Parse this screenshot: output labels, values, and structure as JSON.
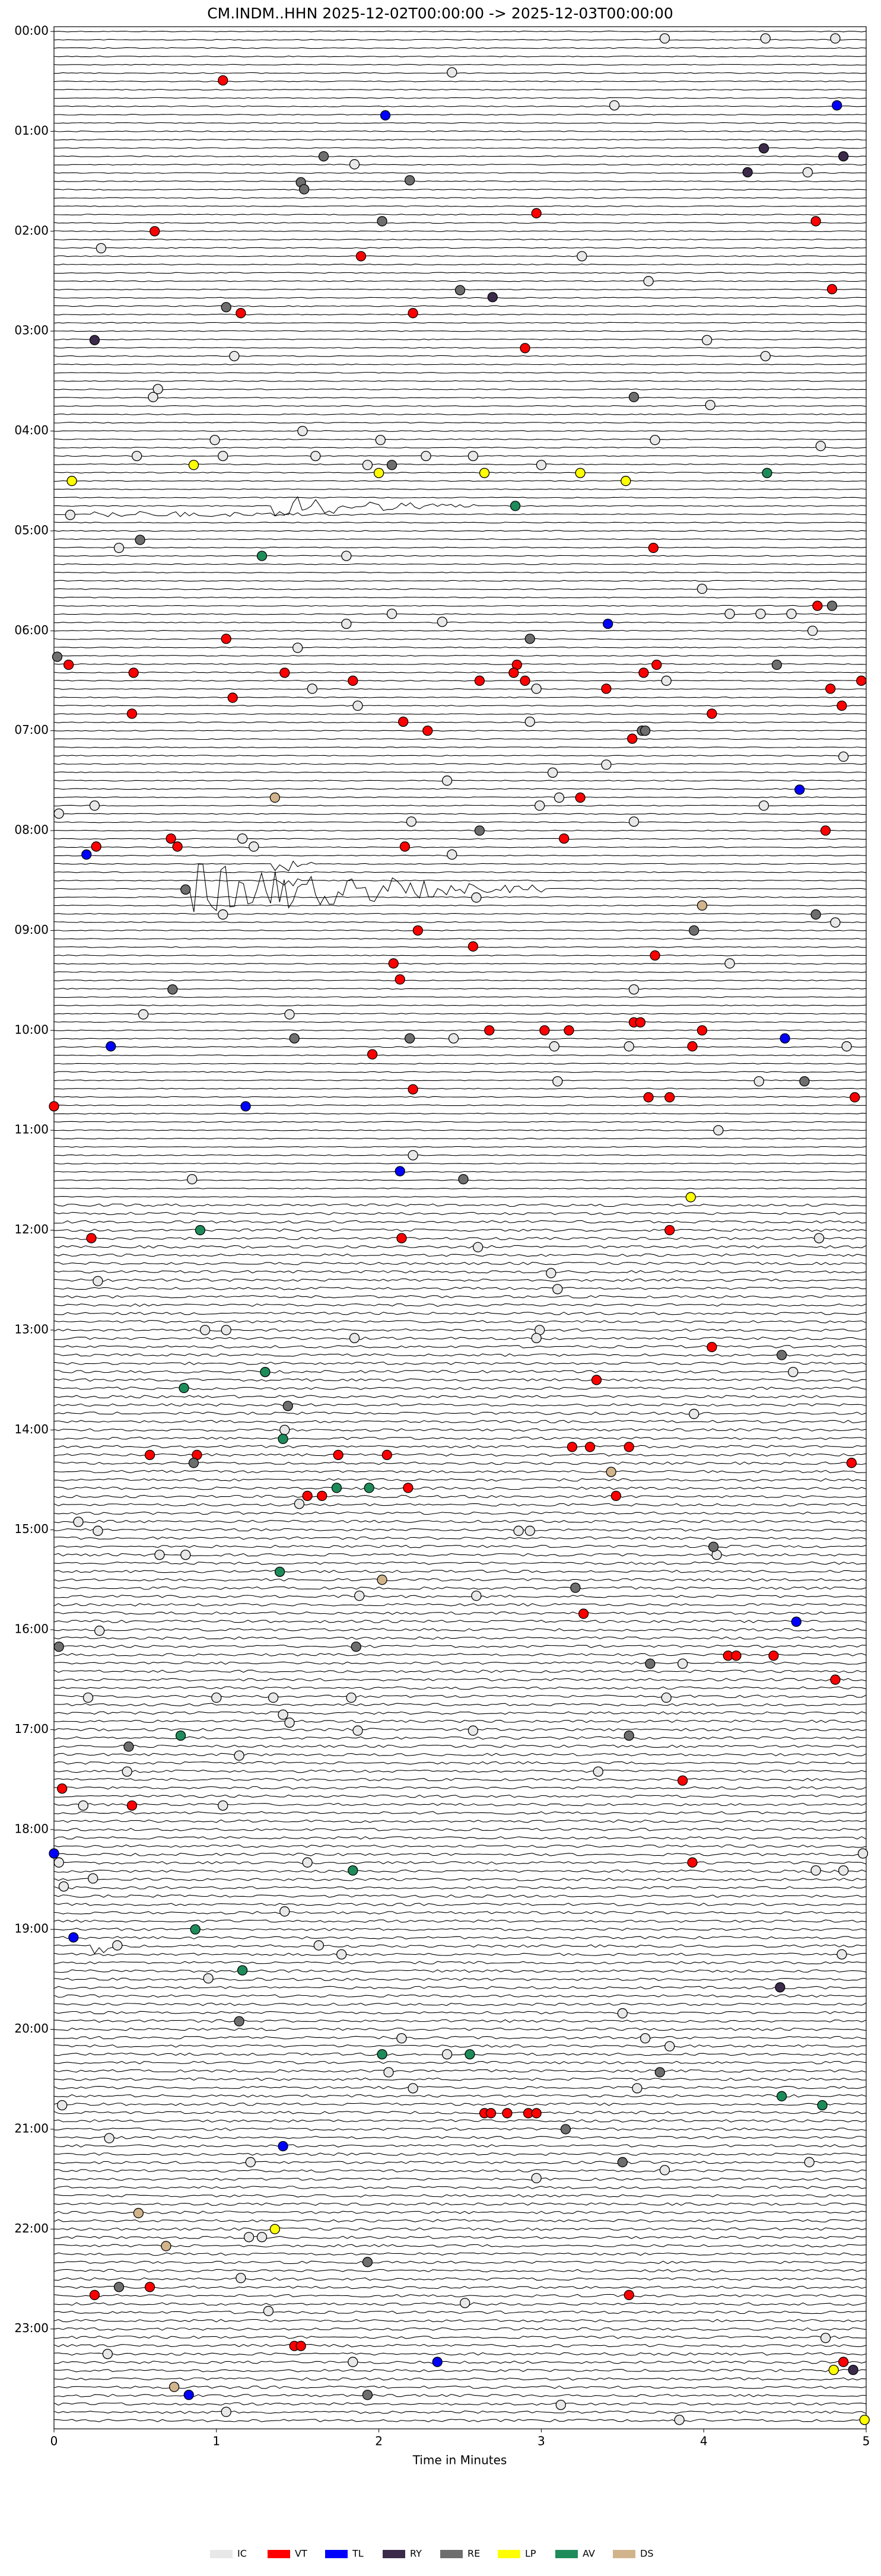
{
  "chart_data": {
    "type": "helicorder",
    "title": "CM.INDM..HHN  2025-12-02T00:00:00 -> 2025-12-03T00:00:00",
    "x_label": "Time in Minutes",
    "xlim": [
      0,
      5
    ],
    "xticks": [
      0,
      1,
      2,
      3,
      4,
      5
    ],
    "ylim": [
      0,
      24
    ],
    "y_inverted": true,
    "yticks": [
      {
        "value": 0,
        "label": "00:00"
      },
      {
        "value": 1,
        "label": "01:00"
      },
      {
        "value": 2,
        "label": "02:00"
      },
      {
        "value": 3,
        "label": "03:00"
      },
      {
        "value": 4,
        "label": "04:00"
      },
      {
        "value": 5,
        "label": "05:00"
      },
      {
        "value": 6,
        "label": "06:00"
      },
      {
        "value": 7,
        "label": "07:00"
      },
      {
        "value": 8,
        "label": "08:00"
      },
      {
        "value": 9,
        "label": "09:00"
      },
      {
        "value": 10,
        "label": "10:00"
      },
      {
        "value": 11,
        "label": "11:00"
      },
      {
        "value": 12,
        "label": "12:00"
      },
      {
        "value": 13,
        "label": "13:00"
      },
      {
        "value": 14,
        "label": "14:00"
      },
      {
        "value": 15,
        "label": "15:00"
      },
      {
        "value": 16,
        "label": "16:00"
      },
      {
        "value": 17,
        "label": "17:00"
      },
      {
        "value": 18,
        "label": "18:00"
      },
      {
        "value": 19,
        "label": "19:00"
      },
      {
        "value": 20,
        "label": "20:00"
      },
      {
        "value": 21,
        "label": "21:00"
      },
      {
        "value": 22,
        "label": "22:00"
      },
      {
        "value": 23,
        "label": "23:00"
      }
    ],
    "legend": "lower center",
    "series": [
      {
        "name": "IC",
        "color": "#e8e8e8",
        "x": [
          3.76,
          4.38,
          4.81,
          2.45,
          3.45,
          1.85,
          4.64,
          0.29,
          3.25,
          3.66,
          4.02,
          1.11,
          4.38,
          0.64,
          0.61,
          4.04,
          1.53,
          0.99,
          2.01,
          3.7,
          4.72,
          0.51,
          1.04,
          1.61,
          2.29,
          2.58,
          1.93,
          3.0,
          0.1,
          0.4,
          1.8,
          3.99,
          1.8,
          2.08,
          2.39,
          4.16,
          4.35,
          4.54,
          4.67,
          1.5,
          3.77,
          1.59,
          1.87,
          2.97,
          2.93,
          4.86,
          3.4,
          3.07,
          2.42,
          3.11,
          2.99,
          4.37,
          0.03,
          0.25,
          2.2,
          3.57,
          1.16,
          1.23,
          2.45,
          2.6,
          1.04,
          4.81,
          4.16,
          3.57,
          0.55,
          1.45,
          2.46,
          3.08,
          3.54,
          4.88,
          3.1,
          4.34,
          4.09,
          2.21,
          0.85,
          4.71,
          2.61,
          3.06,
          0.27,
          3.1,
          0.93,
          1.06,
          2.99,
          2.97,
          1.85,
          4.55,
          3.94,
          1.42,
          1.51,
          0.15,
          0.27,
          2.86,
          2.93,
          4.08,
          0.65,
          0.81,
          1.88,
          2.6,
          0.28,
          3.87,
          0.21,
          1.0,
          1.35,
          1.83,
          3.77,
          1.41,
          1.45,
          1.87,
          2.58,
          1.14,
          0.45,
          3.35,
          0.18,
          1.04,
          0.03,
          1.56,
          4.69,
          4.86,
          4.98,
          0.24,
          0.06,
          1.42,
          0.39,
          1.63,
          1.77,
          4.85,
          0.95,
          3.5,
          2.14,
          3.64,
          2.42,
          3.79,
          2.06,
          3.59,
          2.21,
          0.05,
          0.34,
          1.21,
          3.76,
          4.65,
          2.97,
          1.2,
          1.28,
          1.15,
          2.53,
          1.32,
          0.33,
          1.84,
          4.75,
          3.12,
          1.06,
          3.85
        ],
        "y": [
          0.07,
          0.07,
          0.07,
          0.41,
          0.74,
          1.33,
          1.41,
          2.17,
          2.25,
          2.5,
          3.09,
          3.25,
          3.25,
          3.58,
          3.66,
          3.74,
          4.0,
          4.09,
          4.09,
          4.09,
          4.15,
          4.25,
          4.25,
          4.25,
          4.25,
          4.25,
          4.34,
          4.34,
          4.84,
          5.17,
          5.25,
          5.58,
          5.93,
          5.83,
          5.91,
          5.83,
          5.83,
          5.83,
          6.0,
          6.17,
          6.5,
          6.58,
          6.75,
          6.58,
          6.91,
          7.26,
          7.34,
          7.42,
          7.5,
          7.67,
          7.75,
          7.75,
          7.83,
          7.75,
          7.91,
          7.91,
          8.08,
          8.16,
          8.24,
          8.67,
          8.84,
          8.92,
          9.33,
          9.59,
          9.84,
          9.84,
          10.08,
          10.16,
          10.16,
          10.16,
          10.51,
          10.51,
          11.0,
          11.25,
          11.49,
          12.08,
          12.17,
          12.43,
          12.51,
          12.59,
          13.0,
          13.0,
          13.0,
          13.08,
          13.08,
          13.42,
          13.84,
          14.0,
          14.74,
          14.92,
          15.01,
          15.01,
          15.01,
          15.25,
          15.25,
          15.25,
          15.66,
          15.66,
          16.01,
          16.34,
          16.68,
          16.68,
          16.68,
          16.68,
          16.68,
          16.85,
          16.93,
          17.01,
          17.01,
          17.26,
          17.42,
          17.42,
          17.76,
          17.76,
          18.33,
          18.33,
          18.41,
          18.41,
          18.24,
          18.49,
          18.57,
          18.82,
          19.16,
          19.16,
          19.25,
          19.25,
          19.49,
          19.84,
          20.09,
          20.09,
          20.25,
          20.17,
          20.43,
          20.59,
          20.59,
          20.76,
          21.09,
          21.33,
          21.41,
          21.33,
          21.49,
          22.08,
          22.08,
          22.49,
          22.74,
          22.82,
          23.25,
          23.33,
          23.09,
          23.76,
          23.83,
          23.91
        ]
      },
      {
        "name": "VT",
        "color": "#ff0000",
        "x": [
          1.04,
          2.97,
          0.62,
          4.69,
          1.89,
          4.79,
          1.15,
          2.21,
          2.9,
          3.69,
          4.7,
          1.06,
          0.09,
          0.49,
          1.42,
          2.85,
          2.83,
          1.84,
          2.62,
          2.9,
          3.63,
          3.71,
          4.78,
          4.97,
          1.1,
          3.4,
          4.85,
          0.48,
          2.15,
          2.3,
          4.05,
          3.56,
          3.24,
          4.75,
          0.72,
          0.76,
          0.26,
          2.16,
          3.14,
          2.24,
          2.58,
          2.09,
          2.13,
          3.7,
          2.68,
          3.02,
          3.17,
          3.57,
          3.61,
          3.99,
          3.93,
          1.96,
          2.21,
          3.66,
          3.79,
          4.93,
          0.0,
          0.23,
          2.14,
          3.79,
          4.05,
          3.34,
          0.59,
          0.88,
          1.75,
          2.05,
          3.19,
          3.3,
          3.54,
          4.91,
          2.18,
          1.56,
          1.65,
          3.46,
          3.26,
          4.15,
          4.2,
          4.43,
          4.81,
          0.05,
          3.87,
          0.48,
          3.93,
          2.65,
          2.69,
          2.79,
          2.92,
          2.97,
          0.25,
          0.59,
          3.54,
          1.48,
          1.52,
          4.86
        ],
        "y": [
          0.49,
          1.82,
          2.0,
          1.9,
          2.25,
          2.58,
          2.82,
          2.82,
          3.17,
          5.17,
          5.75,
          6.08,
          6.34,
          6.42,
          6.42,
          6.34,
          6.42,
          6.5,
          6.5,
          6.5,
          6.42,
          6.34,
          6.58,
          6.5,
          6.67,
          6.58,
          6.75,
          6.83,
          6.91,
          7.0,
          6.83,
          7.08,
          7.67,
          8.0,
          8.08,
          8.16,
          8.16,
          8.16,
          8.08,
          9.0,
          9.16,
          9.33,
          9.49,
          9.25,
          10.0,
          10.0,
          10.0,
          9.92,
          9.92,
          10.0,
          10.16,
          10.24,
          10.59,
          10.67,
          10.67,
          10.67,
          10.76,
          12.08,
          12.08,
          12.0,
          13.17,
          13.5,
          14.25,
          14.25,
          14.25,
          14.25,
          14.17,
          14.17,
          14.17,
          14.33,
          14.58,
          14.66,
          14.66,
          14.66,
          15.84,
          16.26,
          16.26,
          16.26,
          16.5,
          17.59,
          17.51,
          17.76,
          18.33,
          20.84,
          20.84,
          20.84,
          20.84,
          20.84,
          22.66,
          22.58,
          22.66,
          23.17,
          23.17,
          23.33
        ]
      },
      {
        "name": "TL",
        "color": "#0000ff",
        "x": [
          2.04,
          4.82,
          3.41,
          4.59,
          0.2,
          4.5,
          0.35,
          1.18,
          2.13,
          4.57,
          0.0,
          0.12,
          1.41,
          2.36,
          0.83
        ],
        "y": [
          0.84,
          0.74,
          5.93,
          7.59,
          8.24,
          10.08,
          10.16,
          10.76,
          11.41,
          15.92,
          18.24,
          19.08,
          21.17,
          23.33,
          23.66
        ]
      },
      {
        "name": "RY",
        "color": "#3b2a4a",
        "x": [
          4.37,
          4.86,
          4.27,
          0.25,
          2.7,
          4.47,
          4.92
        ],
        "y": [
          1.17,
          1.25,
          1.41,
          3.09,
          2.66,
          19.58,
          23.41
        ]
      },
      {
        "name": "RE",
        "color": "#6e6e6e",
        "x": [
          1.66,
          1.52,
          1.54,
          2.19,
          2.02,
          2.5,
          1.06,
          3.57,
          2.08,
          0.53,
          4.79,
          2.93,
          0.02,
          4.45,
          3.62,
          3.64,
          2.62,
          0.81,
          4.69,
          3.94,
          0.73,
          1.48,
          2.19,
          4.62,
          2.52,
          4.48,
          1.44,
          0.86,
          4.06,
          3.21,
          0.03,
          1.86,
          3.67,
          0.46,
          3.54,
          1.14,
          3.73,
          3.15,
          3.5,
          1.93,
          0.4,
          1.93
        ],
        "y": [
          1.25,
          1.51,
          1.58,
          1.49,
          1.9,
          2.59,
          2.76,
          3.66,
          4.34,
          5.09,
          5.75,
          6.08,
          6.26,
          6.34,
          7.0,
          7.0,
          8.0,
          8.59,
          8.84,
          9.0,
          9.59,
          10.08,
          10.08,
          10.51,
          11.49,
          13.25,
          13.76,
          14.33,
          15.17,
          15.58,
          16.17,
          16.17,
          16.34,
          17.17,
          17.06,
          19.92,
          20.43,
          21.0,
          21.33,
          22.33,
          22.58,
          23.66
        ]
      },
      {
        "name": "LP",
        "color": "#ffff00",
        "x": [
          0.86,
          0.11,
          2.0,
          2.65,
          3.24,
          3.52,
          3.92,
          1.36,
          4.8,
          4.99
        ],
        "y": [
          4.34,
          4.5,
          4.42,
          4.42,
          4.42,
          4.5,
          11.67,
          22.0,
          23.41,
          23.91
        ]
      },
      {
        "name": "AV",
        "color": "#1e8c5a",
        "x": [
          4.39,
          2.84,
          1.28,
          0.9,
          1.3,
          0.8,
          1.41,
          1.74,
          1.94,
          1.39,
          0.78,
          1.84,
          0.87,
          1.16,
          2.02,
          2.56,
          4.48,
          4.73
        ],
        "y": [
          4.42,
          4.75,
          5.25,
          12.0,
          13.42,
          13.58,
          14.09,
          14.58,
          14.58,
          15.42,
          17.06,
          18.41,
          19.0,
          19.41,
          20.25,
          20.25,
          20.67,
          20.76
        ]
      },
      {
        "name": "DS",
        "color": "#d2b48c",
        "x": [
          1.36,
          3.99,
          3.43,
          2.02,
          0.52,
          0.69,
          0.74
        ],
        "y": [
          7.67,
          8.75,
          14.42,
          15.5,
          21.84,
          22.17,
          23.58
        ]
      }
    ]
  }
}
